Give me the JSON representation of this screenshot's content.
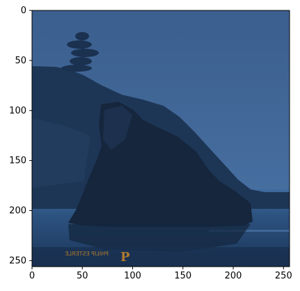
{
  "image": {
    "subject": "Sea stack rock on a beach at dusk with forested headland behind, blue monochrome tint",
    "watermark_text": "PHILIP ESTERLE",
    "watermark_logo": "P"
  },
  "axes": {
    "x_ticks": [
      "0",
      "50",
      "100",
      "150",
      "200",
      "250"
    ],
    "y_ticks": [
      "0",
      "50",
      "100",
      "150",
      "200",
      "250"
    ]
  },
  "colors": {
    "sky": "#3d6494",
    "sea": "#2c4f7d",
    "rock": "#15263d",
    "headland": "#1e3656",
    "watermark": "#b07b2c"
  }
}
